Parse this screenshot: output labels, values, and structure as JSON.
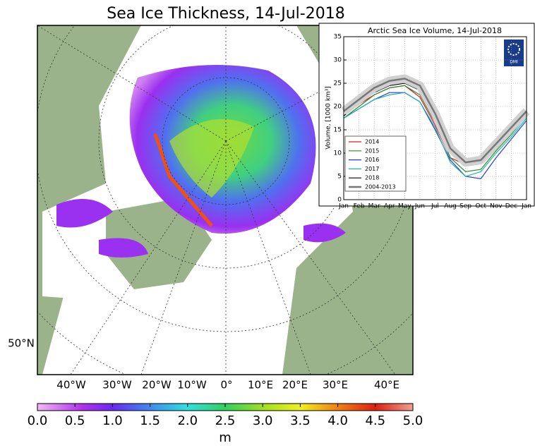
{
  "title": "Sea Ice Thickness, 14-Jul-2018",
  "map": {
    "lon_labels": [
      "40°W",
      "30°W",
      "20°W",
      "10°W",
      "0°",
      "10°E",
      "20°E",
      "30°E",
      "40°E"
    ],
    "lat_label": "50°N"
  },
  "colorbar": {
    "lim": [
      0,
      5
    ],
    "unit": "m",
    "ticks": [
      {
        "value": 0,
        "label": "0.0"
      },
      {
        "value": 0.5,
        "label": "0.5"
      },
      {
        "value": 1,
        "label": "1.0"
      },
      {
        "value": 1.5,
        "label": "1.5"
      },
      {
        "value": 2,
        "label": "2.0"
      },
      {
        "value": 2.5,
        "label": "2.5"
      },
      {
        "value": 3,
        "label": "3.0"
      },
      {
        "value": 3.5,
        "label": "3.5"
      },
      {
        "value": 4,
        "label": "4.0"
      },
      {
        "value": 4.5,
        "label": "4.5"
      },
      {
        "value": 5,
        "label": "5.0"
      }
    ]
  },
  "logo_text": "DMI",
  "chart_data": {
    "type": "line",
    "title": "Arctic Sea Ice Volume, 14-Jul-2018",
    "y_label": "Volume, [1000 km³]",
    "categories": [
      "Jan",
      "Feb",
      "Mar",
      "Apr",
      "May",
      "Jun",
      "Jul",
      "Aug",
      "Sep",
      "Oct",
      "Nov",
      "Dec",
      "Jan"
    ],
    "ylim": [
      0,
      35
    ],
    "yticks": [
      0,
      5,
      10,
      15,
      20,
      25,
      30,
      35
    ],
    "grid": true,
    "legend": "lower left",
    "series": [
      {
        "name": "2014",
        "color": "#e41a1c",
        "values": [
          18,
          20.5,
          22.5,
          24,
          24.5,
          22,
          16,
          9,
          7.5,
          8,
          11.5,
          15,
          18.5
        ]
      },
      {
        "name": "2015",
        "color": "#2e8b2e",
        "values": [
          17.5,
          20,
          22.5,
          24,
          24.5,
          22.5,
          16.5,
          9,
          6,
          6.5,
          10.5,
          14,
          18
        ]
      },
      {
        "name": "2016",
        "color": "#1f3fd1",
        "values": [
          17.5,
          19.5,
          21.5,
          23,
          23,
          21,
          15,
          8.5,
          5,
          4.5,
          9,
          13,
          17
        ]
      },
      {
        "name": "2017",
        "color": "#20b2aa",
        "values": [
          17.5,
          19.5,
          21.5,
          22.5,
          23,
          21,
          15.5,
          8,
          5,
          6,
          10,
          13.5,
          17.5
        ]
      },
      {
        "name": "2018",
        "color": "#000000",
        "values": [
          18,
          20.5,
          23,
          24.5,
          25,
          23.5,
          18,
          null,
          null,
          null,
          null,
          null,
          null
        ]
      },
      {
        "name": "2004-2013",
        "color": "#777777",
        "values": [
          19,
          21.5,
          24,
          25.5,
          26,
          24.5,
          18.5,
          11,
          8,
          8.5,
          12,
          15.5,
          19
        ]
      }
    ]
  }
}
